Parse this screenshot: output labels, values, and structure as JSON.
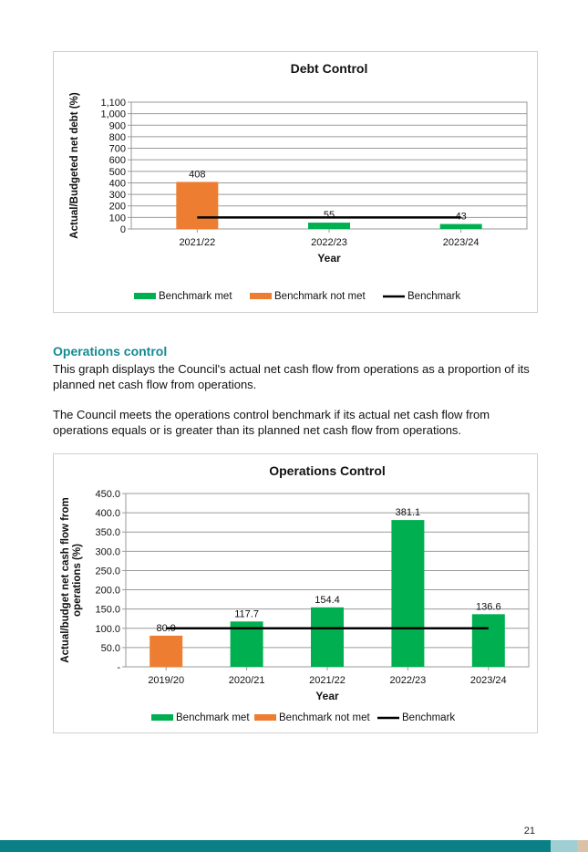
{
  "charts": [
    {
      "chart_data": {
        "type": "bar",
        "title": "Debt Control",
        "xlabel": "Year",
        "ylabel": "Actual/Budgeted net debt  (%)",
        "categories": [
          "2021/22",
          "2022/23",
          "2023/24"
        ],
        "values": [
          408,
          55,
          43
        ],
        "value_labels": [
          "408",
          "55",
          "43"
        ],
        "bar_status": [
          "not_met",
          "met",
          "met"
        ],
        "benchmark": 100,
        "ylim": [
          0,
          1100
        ],
        "yticks": [
          0,
          100,
          200,
          300,
          400,
          500,
          600,
          700,
          800,
          900,
          1000,
          1100
        ],
        "ytick_labels": [
          "0",
          "100",
          "200",
          "300",
          "400",
          "500",
          "600",
          "700",
          "800",
          "900",
          "1,000",
          "1,100"
        ],
        "grid": true,
        "legend_position": "bottom",
        "legend": [
          "Benchmark met",
          "Benchmark not met",
          "Benchmark"
        ],
        "colors": {
          "met": "#00b050",
          "not_met": "#ed7d31",
          "benchmark": "#000000"
        }
      }
    },
    {
      "chart_data": {
        "type": "bar",
        "title": "Operations Control",
        "xlabel": "Year",
        "ylabel_lines": [
          "Actual/budget net cash flow from",
          "operations (%)"
        ],
        "categories": [
          "2019/20",
          "2020/21",
          "2021/22",
          "2022/23",
          "2023/24"
        ],
        "values": [
          80.9,
          117.7,
          154.4,
          381.1,
          136.6
        ],
        "value_labels": [
          "80.9",
          "117.7",
          "154.4",
          "381.1",
          "136.6"
        ],
        "bar_status": [
          "not_met",
          "met",
          "met",
          "met",
          "met"
        ],
        "benchmark": 100,
        "ylim": [
          0,
          450
        ],
        "yticks": [
          0,
          50,
          100,
          150,
          200,
          250,
          300,
          350,
          400,
          450
        ],
        "ytick_labels": [
          "-",
          "50.0",
          "100.0",
          "150.0",
          "200.0",
          "250.0",
          "300.0",
          "350.0",
          "400.0",
          "450.0"
        ],
        "grid": true,
        "legend_position": "bottom",
        "legend": [
          "Benchmark met",
          "Benchmark not met",
          "Benchmark"
        ],
        "colors": {
          "met": "#00b050",
          "not_met": "#ed7d31",
          "benchmark": "#000000"
        }
      }
    }
  ],
  "section": {
    "heading": "Operations control",
    "para1": "This graph displays the Council's actual net cash flow from operations as a proportion of its planned net cash flow from operations.",
    "para2": "The Council meets the operations control benchmark if its actual net cash flow from operations equals or is greater than its planned net cash flow from operations."
  },
  "page_number": "21",
  "footer_colors": {
    "bar": "#0a7f86",
    "block1": "#9fcfd3",
    "block2": "#d9c2a8"
  }
}
